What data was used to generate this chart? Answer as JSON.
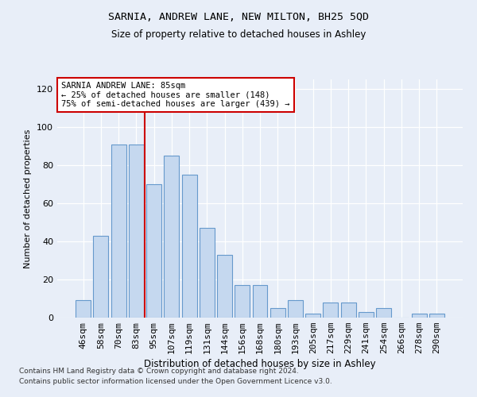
{
  "title1": "SARNIA, ANDREW LANE, NEW MILTON, BH25 5QD",
  "title2": "Size of property relative to detached houses in Ashley",
  "xlabel": "Distribution of detached houses by size in Ashley",
  "ylabel": "Number of detached properties",
  "categories": [
    "46sqm",
    "58sqm",
    "70sqm",
    "83sqm",
    "95sqm",
    "107sqm",
    "119sqm",
    "131sqm",
    "144sqm",
    "156sqm",
    "168sqm",
    "180sqm",
    "193sqm",
    "205sqm",
    "217sqm",
    "229sqm",
    "241sqm",
    "254sqm",
    "266sqm",
    "278sqm",
    "290sqm"
  ],
  "values": [
    9,
    43,
    91,
    91,
    70,
    85,
    75,
    47,
    33,
    17,
    17,
    5,
    9,
    2,
    8,
    8,
    3,
    5,
    0,
    2,
    2
  ],
  "bar_color": "#c5d8ef",
  "bar_edge_color": "#6699cc",
  "vline_bar_index": 3,
  "vline_color": "#cc0000",
  "annotation_line1": "SARNIA ANDREW LANE: 85sqm",
  "annotation_line2": "← 25% of detached houses are smaller (148)",
  "annotation_line3": "75% of semi-detached houses are larger (439) →",
  "annotation_box_facecolor": "white",
  "annotation_box_edgecolor": "#cc0000",
  "ylim": [
    0,
    125
  ],
  "yticks": [
    0,
    20,
    40,
    60,
    80,
    100,
    120
  ],
  "footnote1": "Contains HM Land Registry data © Crown copyright and database right 2024.",
  "footnote2": "Contains public sector information licensed under the Open Government Licence v3.0.",
  "bg_color": "#e8eef8",
  "bar_width": 0.85
}
